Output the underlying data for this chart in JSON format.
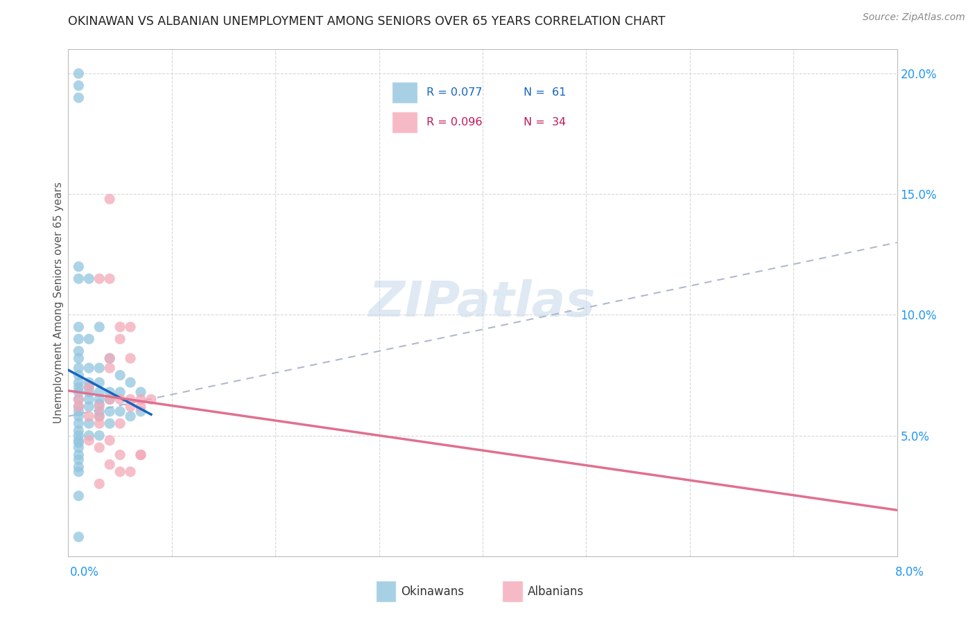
{
  "title": "OKINAWAN VS ALBANIAN UNEMPLOYMENT AMONG SENIORS OVER 65 YEARS CORRELATION CHART",
  "source": "Source: ZipAtlas.com",
  "ylabel": "Unemployment Among Seniors over 65 years",
  "okinawan_color": "#92c5de",
  "albanian_color": "#f4a9b8",
  "okinawan_line_color": "#1565C0",
  "albanian_line_color": "#e07090",
  "dash_line_color": "#b0b8cc",
  "okinawan_R": 0.077,
  "okinawan_N": 61,
  "albanian_R": 0.096,
  "albanian_N": 34,
  "watermark": "ZIPatlas",
  "background_color": "#ffffff",
  "okinawan_scatter_x": [
    0.001,
    0.001,
    0.001,
    0.001,
    0.001,
    0.001,
    0.001,
    0.001,
    0.001,
    0.001,
    0.001,
    0.001,
    0.001,
    0.001,
    0.001,
    0.001,
    0.001,
    0.001,
    0.001,
    0.001,
    0.001,
    0.001,
    0.001,
    0.001,
    0.001,
    0.001,
    0.001,
    0.001,
    0.001,
    0.001,
    0.002,
    0.002,
    0.002,
    0.002,
    0.002,
    0.002,
    0.002,
    0.002,
    0.002,
    0.002,
    0.003,
    0.003,
    0.003,
    0.003,
    0.003,
    0.003,
    0.003,
    0.003,
    0.003,
    0.004,
    0.004,
    0.004,
    0.004,
    0.004,
    0.005,
    0.005,
    0.005,
    0.006,
    0.006,
    0.007,
    0.007
  ],
  "okinawan_scatter_y": [
    0.2,
    0.195,
    0.19,
    0.12,
    0.115,
    0.095,
    0.09,
    0.085,
    0.082,
    0.078,
    0.075,
    0.072,
    0.07,
    0.068,
    0.065,
    0.062,
    0.06,
    0.058,
    0.055,
    0.052,
    0.05,
    0.048,
    0.047,
    0.045,
    0.042,
    0.04,
    0.037,
    0.035,
    0.025,
    0.008,
    0.115,
    0.09,
    0.078,
    0.072,
    0.07,
    0.068,
    0.065,
    0.062,
    0.055,
    0.05,
    0.095,
    0.078,
    0.072,
    0.068,
    0.065,
    0.063,
    0.06,
    0.058,
    0.05,
    0.082,
    0.068,
    0.065,
    0.06,
    0.055,
    0.075,
    0.068,
    0.06,
    0.072,
    0.058,
    0.068,
    0.06
  ],
  "albanian_scatter_x": [
    0.001,
    0.001,
    0.002,
    0.002,
    0.002,
    0.003,
    0.003,
    0.003,
    0.003,
    0.004,
    0.004,
    0.004,
    0.004,
    0.004,
    0.004,
    0.005,
    0.005,
    0.005,
    0.005,
    0.005,
    0.006,
    0.006,
    0.006,
    0.006,
    0.007,
    0.007,
    0.007,
    0.008,
    0.003,
    0.003,
    0.004,
    0.005,
    0.006,
    0.007
  ],
  "albanian_scatter_y": [
    0.065,
    0.062,
    0.07,
    0.058,
    0.048,
    0.062,
    0.058,
    0.055,
    0.045,
    0.148,
    0.082,
    0.078,
    0.065,
    0.048,
    0.038,
    0.095,
    0.09,
    0.065,
    0.055,
    0.042,
    0.095,
    0.082,
    0.065,
    0.062,
    0.065,
    0.062,
    0.042,
    0.065,
    0.115,
    0.03,
    0.115,
    0.035,
    0.035,
    0.042
  ]
}
